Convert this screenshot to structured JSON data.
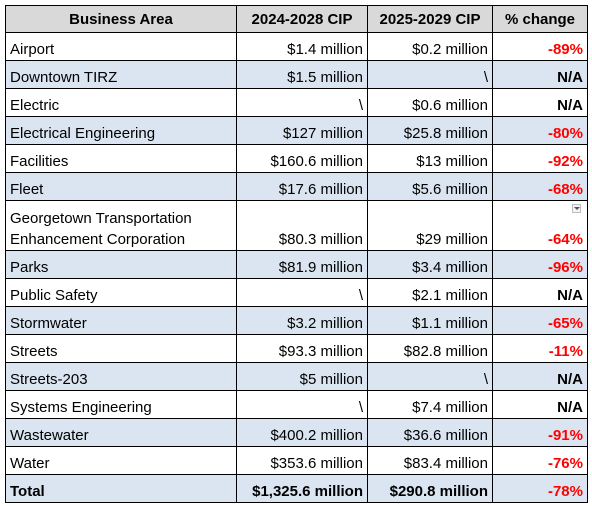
{
  "table": {
    "headers": [
      "Business Area",
      "2024-2028 CIP",
      "2025-2029 CIP",
      "% change"
    ],
    "rows": [
      {
        "area": "Airport",
        "cip_2024_2028": "$1.4 million",
        "cip_2025_2029": "$0.2 million",
        "pct_change": "-89%"
      },
      {
        "area": "Downtown TIRZ",
        "cip_2024_2028": "$1.5 million",
        "cip_2025_2029": "\\",
        "pct_change": "N/A"
      },
      {
        "area": "Electric",
        "cip_2024_2028": "\\",
        "cip_2025_2029": "$0.6 million",
        "pct_change": "N/A"
      },
      {
        "area": "Electrical Engineering",
        "cip_2024_2028": "$127 million",
        "cip_2025_2029": "$25.8 million",
        "pct_change": "-80%"
      },
      {
        "area": "Facilities",
        "cip_2024_2028": "$160.6 million",
        "cip_2025_2029": "$13 million",
        "pct_change": "-92%"
      },
      {
        "area": "Fleet",
        "cip_2024_2028": "$17.6 million",
        "cip_2025_2029": "$5.6 million",
        "pct_change": "-68%"
      },
      {
        "area": "Georgetown Transportation Enhancement Corporation",
        "cip_2024_2028": "$80.3 million",
        "cip_2025_2029": "$29 million",
        "pct_change": "-64%"
      },
      {
        "area": "Parks",
        "cip_2024_2028": "$81.9 million",
        "cip_2025_2029": "$3.4 million",
        "pct_change": "-96%"
      },
      {
        "area": "Public Safety",
        "cip_2024_2028": "\\",
        "cip_2025_2029": "$2.1 million",
        "pct_change": "N/A"
      },
      {
        "area": "Stormwater",
        "cip_2024_2028": "$3.2 million",
        "cip_2025_2029": "$1.1 million",
        "pct_change": "-65%"
      },
      {
        "area": "Streets",
        "cip_2024_2028": "$93.3 million",
        "cip_2025_2029": "$82.8 million",
        "pct_change": "-11%"
      },
      {
        "area": "Streets-203",
        "cip_2024_2028": "$5 million",
        "cip_2025_2029": "\\",
        "pct_change": "N/A"
      },
      {
        "area": "Systems Engineering",
        "cip_2024_2028": "\\",
        "cip_2025_2029": "$7.4 million",
        "pct_change": "N/A"
      },
      {
        "area": "Wastewater",
        "cip_2024_2028": "$400.2 million",
        "cip_2025_2029": "$36.6 million",
        "pct_change": "-91%"
      },
      {
        "area": "Water",
        "cip_2024_2028": "$353.6 million",
        "cip_2025_2029": "$83.4 million",
        "pct_change": "-76%"
      }
    ],
    "total": {
      "area": "Total",
      "cip_2024_2028": "$1,325.6 million",
      "cip_2025_2029": "$290.8 million",
      "pct_change": "-78%"
    }
  },
  "icons": {
    "filter_dropdown": "dropdown-arrow-icon"
  },
  "colors": {
    "header_bg": "#d9d9d9",
    "shaded_row_bg": "#dbe5f1",
    "negative_change": "#ff0000",
    "border": "#000000"
  }
}
